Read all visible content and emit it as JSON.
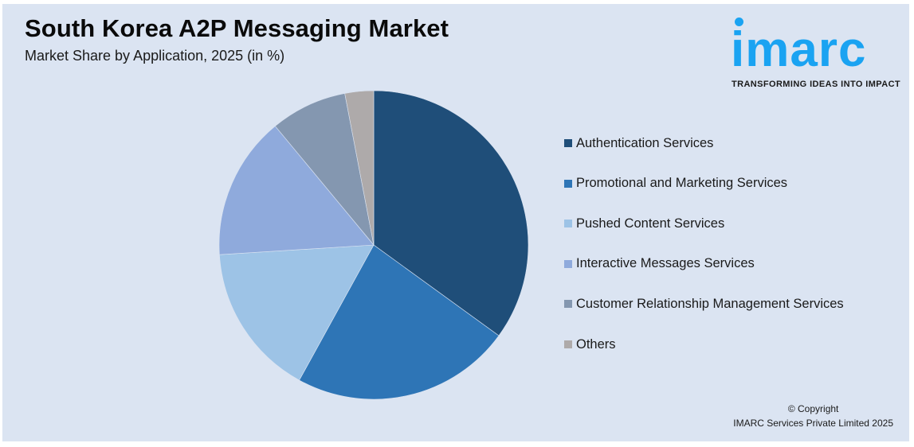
{
  "header": {
    "title": "South Korea A2P Messaging Market",
    "subtitle": "Market Share by Application, 2025 (in %)"
  },
  "logo": {
    "wordmark": "imarc",
    "tagline": "TRANSFORMING IDEAS INTO IMPACT",
    "color": "#1aa3f2"
  },
  "footer": {
    "copyright_line": "© Copyright",
    "company_line": "IMARC Services Private Limited 2025"
  },
  "chart_data": {
    "type": "pie",
    "title": "South Korea A2P Messaging Market",
    "subtitle": "Market Share by Application, 2025 (in %)",
    "categories": [
      "Authentication Services",
      "Promotional and Marketing Services",
      "Pushed Content Services",
      "Interactive Messages Services",
      "Customer Relationship Management Services",
      "Others"
    ],
    "values": [
      35,
      23,
      16,
      15,
      8,
      3
    ],
    "colors": [
      "#1f4e79",
      "#2e75b6",
      "#9dc3e6",
      "#8faadc",
      "#8497b0",
      "#aeaaaa"
    ],
    "start_angle_deg": 0,
    "direction": "clockwise",
    "legend_position": "right",
    "data_labels": false
  }
}
